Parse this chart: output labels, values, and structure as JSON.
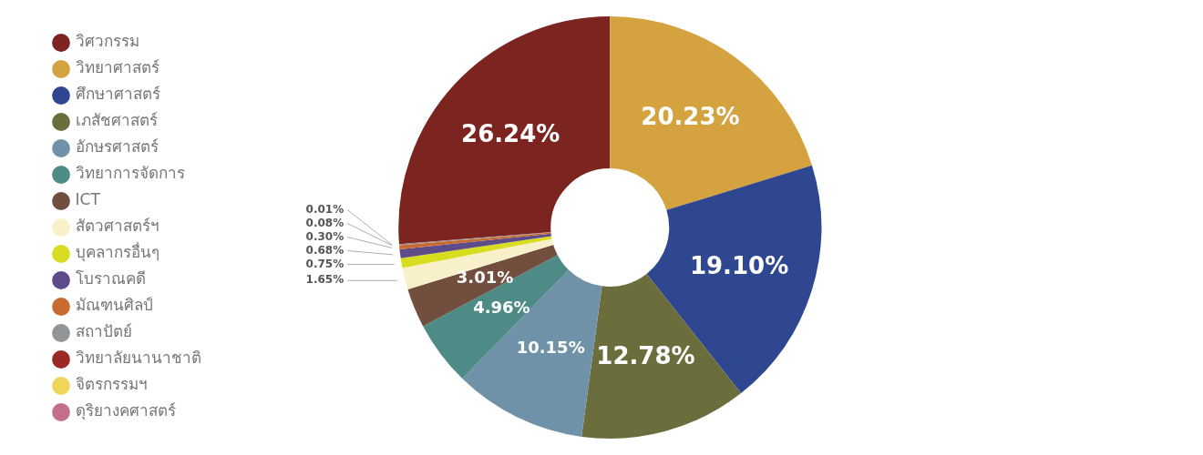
{
  "chart_data": {
    "type": "donut",
    "categories": [
      "วิศวกรรม",
      "วิทยาศาสตร์",
      "ศึกษาศาสตร์",
      "เภสัชศาสตร์",
      "อักษรศาสตร์",
      "วิทยาการจัดการ",
      "ICT",
      "สัตวศาสตร์ฯ",
      "บุคลากรอื่นๆ",
      "โบราณคดี",
      "มัณฑนศิลป์",
      "สถาปัตย์",
      "วิทยาลัยนานาชาติ",
      "จิตรกรรมฯ",
      "ดุริยางคศาสตร์"
    ],
    "values": [
      26.24,
      20.23,
      19.1,
      12.78,
      10.15,
      4.96,
      3.01,
      1.65,
      0.75,
      0.68,
      0.3,
      0.08,
      0.01,
      null,
      null
    ],
    "colors": [
      "#7b2420",
      "#d4a23e",
      "#2e4790",
      "#6b6e3c",
      "#7092a8",
      "#4e8a86",
      "#724e3e",
      "#f7f0c8",
      "#d8dd1f",
      "#5d4b8a",
      "#c96a30",
      "#919597",
      "#9b2a26",
      "#f0d55a",
      "#c56e8a"
    ],
    "value_labels": [
      "26.24%",
      "20.23%",
      "19.10%",
      "12.78%",
      "10.15%",
      "4.96%",
      "3.01%",
      "1.65%",
      "0.75%",
      "0.68%",
      "0.30%",
      "0.08%",
      "0.01%",
      null,
      null
    ],
    "legend": "left"
  }
}
